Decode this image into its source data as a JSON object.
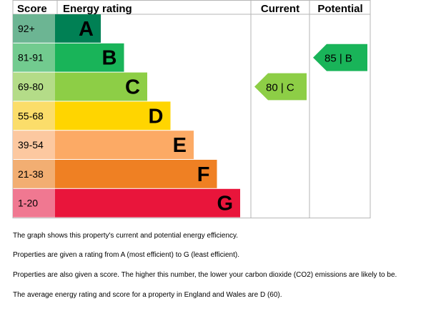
{
  "chart_data": {
    "type": "bar",
    "headers": {
      "score": "Score",
      "rating": "Energy rating",
      "current": "Current",
      "potential": "Potential"
    },
    "bands": [
      {
        "score": "92+",
        "letter": "A",
        "color": "#008054",
        "score_bg": "#6cb593"
      },
      {
        "score": "81-91",
        "letter": "B",
        "color": "#19b459",
        "score_bg": "#72cb8f"
      },
      {
        "score": "69-80",
        "letter": "C",
        "color": "#8dce46",
        "score_bg": "#b4dc88"
      },
      {
        "score": "55-68",
        "letter": "D",
        "color": "#ffd500",
        "score_bg": "#fbdd6a"
      },
      {
        "score": "39-54",
        "letter": "E",
        "color": "#fcaa65",
        "score_bg": "#fcc8a0"
      },
      {
        "score": "21-38",
        "letter": "F",
        "color": "#ef8023",
        "score_bg": "#f2ae72"
      },
      {
        "score": "1-20",
        "letter": "G",
        "color": "#e9153b",
        "score_bg": "#f07891"
      }
    ],
    "current": {
      "value": 80,
      "band": "C",
      "label": "80 |  C",
      "color": "#8dce46"
    },
    "potential": {
      "value": 85,
      "band": "B",
      "label": "85 |  B",
      "color": "#19b459"
    }
  },
  "notes": [
    "The graph shows this property's current and potential energy efficiency.",
    "Properties are given a rating from A (most efficient) to G (least efficient).",
    "Properties are also given a score. The higher this number, the lower your carbon dioxide (CO2) emissions are likely to be.",
    "The average energy rating and score for a property in England and Wales are D (60)."
  ]
}
